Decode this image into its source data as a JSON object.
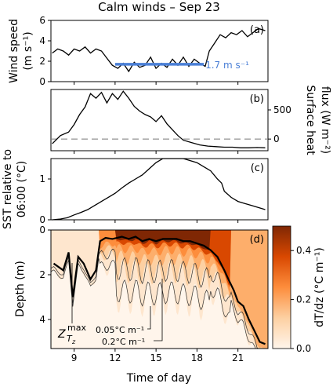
{
  "chart_data": {
    "type": "line",
    "title": "Calm winds – Sep 23",
    "xlabel": "Time of day",
    "xlim": [
      7.3,
      23.2
    ],
    "x_ticks": [
      "9",
      "12",
      "15",
      "18",
      "21"
    ],
    "panels": [
      {
        "label": "(a)",
        "ylabel_top": "Wind speed",
        "ylabel_bottom": "(m s⁻¹)",
        "ylim": [
          0,
          6
        ],
        "y_ticks": [
          "0",
          "2",
          "4",
          "6"
        ],
        "series": [
          {
            "x": [
              7.4,
              7.8,
              8.2,
              8.6,
              9.0,
              9.4,
              9.8,
              10.2,
              10.6,
              11.0,
              11.4,
              11.8,
              12.2,
              12.6,
              13.0,
              13.4,
              13.8,
              14.2,
              14.6,
              15.0,
              15.4,
              15.8,
              16.2,
              16.6,
              17.0,
              17.4,
              17.8,
              18.2,
              18.6,
              18.9,
              19.3,
              19.7,
              20.1,
              20.5,
              20.9,
              21.3,
              21.7,
              22.1,
              22.5,
              23.0
            ],
            "y": [
              2.8,
              3.2,
              3.0,
              2.6,
              3.2,
              3.0,
              3.4,
              2.8,
              3.2,
              3.0,
              2.3,
              1.6,
              1.3,
              1.8,
              1.0,
              1.9,
              1.4,
              1.6,
              2.4,
              1.3,
              1.8,
              1.4,
              2.2,
              1.6,
              2.4,
              1.5,
              2.2,
              1.8,
              1.5,
              3.0,
              3.8,
              4.6,
              4.3,
              4.8,
              4.6,
              5.0,
              4.4,
              4.8,
              5.2,
              5.0
            ]
          }
        ],
        "mean_line": {
          "x_start": 12.0,
          "x_end": 18.5,
          "value": 1.7,
          "label": "1.7 m s⁻¹",
          "color": "#4a7fd6"
        }
      },
      {
        "label": "(b)",
        "ylabel_top": "Surface heat",
        "ylabel_bottom": "flux (W m⁻²)",
        "ylim": [
          -200,
          850
        ],
        "y_ticks": [
          "0",
          "500"
        ],
        "zero_line": true,
        "series": [
          {
            "x": [
              7.4,
              8.0,
              8.6,
              9.0,
              9.4,
              9.8,
              10.2,
              10.6,
              11.0,
              11.4,
              11.8,
              12.2,
              12.6,
              13.0,
              13.4,
              13.8,
              14.2,
              14.6,
              15.0,
              15.4,
              15.8,
              16.2,
              16.6,
              17.0,
              17.6,
              18.2,
              18.8,
              19.4,
              20.0,
              20.6,
              21.2,
              21.8,
              22.4,
              23.0
            ],
            "y": [
              -80,
              60,
              120,
              250,
              420,
              550,
              780,
              700,
              800,
              620,
              780,
              680,
              820,
              700,
              560,
              480,
              420,
              380,
              300,
              400,
              260,
              160,
              60,
              -20,
              -60,
              -100,
              -120,
              -130,
              -140,
              -140,
              -150,
              -150,
              -145,
              -150
            ]
          }
        ]
      },
      {
        "label": "(c)",
        "ylabel_top": "SST relative to",
        "ylabel_bottom": "06:00 (°C)",
        "ylim": [
          0,
          1.5
        ],
        "y_ticks": [
          "0",
          "1"
        ],
        "series": [
          {
            "x": [
              7.4,
              8.0,
              8.5,
              9.0,
              9.5,
              10.0,
              10.5,
              11.0,
              11.5,
              12.0,
              12.5,
              13.0,
              13.5,
              14.0,
              14.5,
              15.0,
              15.5,
              16.0,
              16.5,
              17.0,
              17.5,
              18.0,
              18.5,
              19.0,
              19.5,
              19.8,
              20.0,
              20.5,
              21.0,
              21.5,
              22.0,
              22.5,
              23.0
            ],
            "y": [
              0.0,
              0.02,
              0.05,
              0.12,
              0.18,
              0.25,
              0.35,
              0.45,
              0.55,
              0.65,
              0.78,
              0.9,
              1.0,
              1.1,
              1.25,
              1.4,
              1.5,
              1.6,
              1.55,
              1.5,
              1.45,
              1.4,
              1.3,
              1.2,
              1.0,
              0.9,
              0.7,
              0.55,
              0.45,
              0.4,
              0.35,
              0.3,
              0.25
            ]
          }
        ]
      },
      {
        "label": "(d)",
        "ylabel": "Depth (m)",
        "ylim": [
          0,
          5.3
        ],
        "y_ticks": [
          "0",
          "2",
          "4"
        ],
        "zmax_series": {
          "x": [
            7.5,
            8.2,
            8.6,
            8.9,
            9.3,
            9.7,
            10.2,
            10.6,
            10.9,
            11.3,
            11.8,
            12.5,
            13.0,
            13.5,
            14.0,
            14.5,
            15.0,
            15.5,
            16.0,
            16.5,
            17.0,
            17.5,
            18.0,
            18.5,
            19.0,
            19.5,
            20.0,
            20.3,
            20.7,
            21.0,
            21.4,
            21.8,
            22.2,
            22.6,
            23.0
          ],
          "y": [
            1.5,
            1.8,
            1.0,
            3.0,
            1.2,
            1.5,
            2.2,
            1.8,
            0.5,
            0.35,
            0.4,
            0.3,
            0.4,
            0.3,
            0.5,
            0.4,
            0.5,
            0.4,
            0.4,
            0.4,
            0.5,
            0.5,
            0.6,
            0.7,
            0.9,
            1.2,
            1.8,
            2.2,
            2.7,
            3.2,
            3.4,
            4.0,
            4.5,
            5.0,
            5.1
          ]
        },
        "contour_labels": [
          "0.05°C m⁻¹",
          "0.2°C m⁻¹"
        ],
        "zmax_label": "Z",
        "zmax_superscript": "max",
        "zmax_subscript": "T",
        "zmax_subsubscript": "z",
        "colorbar": {
          "label": "dT/dz (°C m⁻¹)",
          "vmin": 0.0,
          "vmax": 0.5,
          "ticks": [
            "0.0",
            "0.2",
            "0.4"
          ]
        }
      }
    ]
  }
}
